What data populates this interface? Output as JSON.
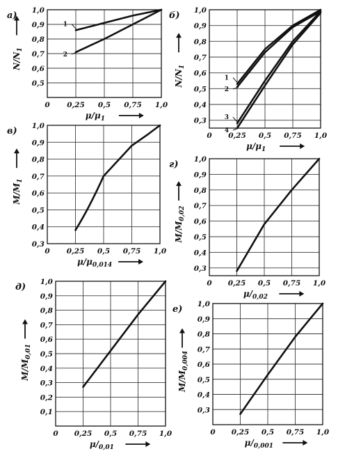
{
  "chart_data": [
    {
      "id": "a",
      "type": "line",
      "panel_label": "а)",
      "xlabel": "μ/μ",
      "xlabel_sub": "1",
      "ylabel": "N/N",
      "ylabel_sub": "1",
      "xlim": [
        0,
        1.0
      ],
      "ylim": [
        0.4,
        1.0
      ],
      "xticks": [
        "0",
        "0,25",
        "0,5",
        "0,75",
        "1,0"
      ],
      "yticks": [
        "1,0",
        "0,9",
        "0,8",
        "0,7",
        "0,6",
        "0,5"
      ],
      "series": [
        {
          "name": "1",
          "x": [
            0.25,
            0.5,
            0.75,
            1.0
          ],
          "y": [
            0.86,
            0.91,
            0.96,
            1.0
          ]
        },
        {
          "name": "2",
          "x": [
            0.25,
            0.5,
            0.75,
            1.0
          ],
          "y": [
            0.71,
            0.8,
            0.9,
            1.0
          ]
        }
      ]
    },
    {
      "id": "b",
      "type": "line",
      "panel_label": "б)",
      "xlabel": "μ/μ",
      "xlabel_sub": "1",
      "ylabel": "N/N",
      "ylabel_sub": "1",
      "xlim": [
        0,
        1.0
      ],
      "ylim": [
        0.25,
        1.0
      ],
      "xticks": [
        "0",
        "0,25",
        "0,5",
        "0,75",
        "1,0"
      ],
      "yticks": [
        "1,0",
        "0,9",
        "0,8",
        "0,7",
        "0,6",
        "0,5",
        "0,4",
        "0,3"
      ],
      "series": [
        {
          "name": "1",
          "x": [
            0.25,
            0.5,
            0.75,
            1.0
          ],
          "y": [
            0.53,
            0.75,
            0.9,
            1.0
          ]
        },
        {
          "name": "2",
          "x": [
            0.25,
            0.5,
            0.75,
            1.0
          ],
          "y": [
            0.51,
            0.73,
            0.89,
            0.99
          ]
        },
        {
          "name": "3",
          "x": [
            0.25,
            0.5,
            0.75,
            1.0
          ],
          "y": [
            0.28,
            0.55,
            0.8,
            0.99
          ]
        },
        {
          "name": "4",
          "x": [
            0.25,
            0.5,
            0.75,
            1.0
          ],
          "y": [
            0.25,
            0.52,
            0.78,
            0.98
          ]
        }
      ]
    },
    {
      "id": "v",
      "type": "line",
      "panel_label": "в)",
      "xlabel": "μ/μ",
      "xlabel_sub": "0,014",
      "ylabel": "M/M",
      "ylabel_sub": "1",
      "xlim": [
        0,
        1.0
      ],
      "ylim": [
        0.3,
        1.0
      ],
      "xticks": [
        "0",
        "0,25",
        "0,5",
        "0,75",
        "1,0"
      ],
      "yticks": [
        "1,0",
        "0,9",
        "0,8",
        "0,7",
        "0,6",
        "0,5",
        "0,4",
        "0,3"
      ],
      "series": [
        {
          "name": "",
          "x": [
            0.25,
            0.5,
            0.75,
            0.9,
            1.0
          ],
          "y": [
            0.38,
            0.7,
            0.88,
            0.95,
            1.0
          ]
        }
      ]
    },
    {
      "id": "g",
      "type": "line",
      "panel_label": "г)",
      "xlabel": "μ/",
      "xlabel_sub": "0,02",
      "ylabel": "M/M",
      "ylabel_sub": "0,02",
      "xlim": [
        0,
        1.0
      ],
      "ylim": [
        0.25,
        1.0
      ],
      "xticks": [
        "0",
        "0,25",
        "0,5",
        "0,75",
        "1,0"
      ],
      "yticks": [
        "1,0",
        "0,9",
        "0,8",
        "0,7",
        "0,6",
        "0,5",
        "0,4",
        "0,3"
      ],
      "series": [
        {
          "name": "",
          "x": [
            0.25,
            0.5,
            0.75,
            1.0
          ],
          "y": [
            0.28,
            0.58,
            0.8,
            1.0
          ]
        }
      ]
    },
    {
      "id": "d",
      "type": "line",
      "panel_label": "д)",
      "xlabel": "μ/",
      "xlabel_sub": "0,01",
      "ylabel": "M/M",
      "ylabel_sub": "0,01",
      "xlim": [
        0,
        1.0
      ],
      "ylim": [
        0.0,
        1.0
      ],
      "xticks": [
        "0",
        "0,25",
        "0,5",
        "0,75",
        "1,0"
      ],
      "yticks": [
        "1,0",
        "0,9",
        "0,8",
        "0,7",
        "0,6",
        "0,5",
        "0,4",
        "0,3",
        "0,2",
        "0,1"
      ],
      "series": [
        {
          "name": "",
          "x": [
            0.25,
            0.5,
            0.75,
            1.0
          ],
          "y": [
            0.27,
            0.52,
            0.77,
            1.0
          ]
        }
      ]
    },
    {
      "id": "e",
      "type": "line",
      "panel_label": "е)",
      "xlabel": "μ/",
      "xlabel_sub": "0,001",
      "ylabel": "M/M",
      "ylabel_sub": "0,004",
      "xlim": [
        0,
        1.0
      ],
      "ylim": [
        0.2,
        1.0
      ],
      "xticks": [
        "0",
        "0,25",
        "0,5",
        "0,75",
        "1,0"
      ],
      "yticks": [
        "1,0",
        "0,9",
        "0,8",
        "0,7",
        "0,6",
        "0,5",
        "0,4",
        "0,3"
      ],
      "series": [
        {
          "name": "",
          "x": [
            0.25,
            0.5,
            0.75,
            1.0
          ],
          "y": [
            0.27,
            0.53,
            0.78,
            1.0
          ]
        }
      ]
    }
  ]
}
